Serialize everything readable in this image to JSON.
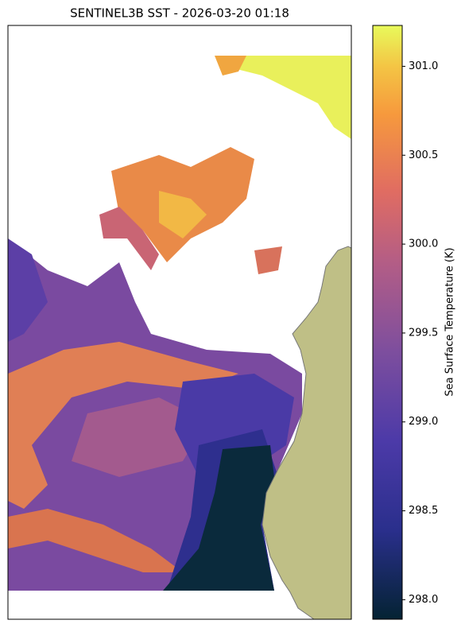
{
  "map": {
    "title": "SENTINEL3B SST - 2026-03-20 01:18",
    "colorbar": {
      "label": "Sea Surface Temperature (K)",
      "lim": [
        297.89,
        301.23
      ],
      "ticks": [
        {
          "value": 298,
          "label": "298.0"
        },
        {
          "value": 298.5,
          "label": "298.5"
        },
        {
          "value": 299,
          "label": "299.0"
        },
        {
          "value": 299.5,
          "label": "299.5"
        },
        {
          "value": 300,
          "label": "300.0"
        },
        {
          "value": 300.5,
          "label": "300.5"
        },
        {
          "value": 301,
          "label": "301.0"
        }
      ]
    }
  }
}
